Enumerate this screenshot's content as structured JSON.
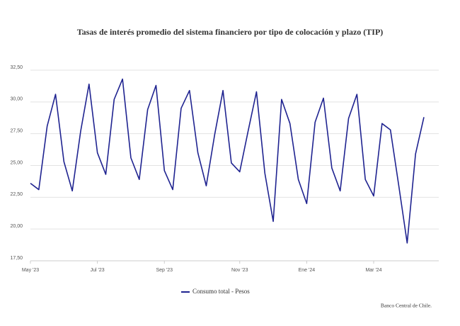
{
  "chart_data": {
    "type": "line",
    "title": "Tasas de interés promedio del sistema financiero por tipo de colocación y plazo (TIP)",
    "credit": "Banco Central de Chile.",
    "categories": [
      "May '23",
      null,
      null,
      null,
      null,
      null,
      null,
      null,
      "Jul '23",
      null,
      null,
      null,
      null,
      null,
      null,
      null,
      "Sep '23",
      null,
      null,
      null,
      null,
      null,
      null,
      null,
      null,
      "Nov '23",
      null,
      null,
      null,
      null,
      null,
      null,
      null,
      "Ene '24",
      null,
      null,
      null,
      null,
      null,
      null,
      null,
      "Mar '24",
      null,
      null,
      null,
      null,
      null,
      null
    ],
    "series": [
      {
        "name": "Consumo total - Pesos",
        "color": "#1f2390",
        "values": [
          23.6,
          23.1,
          28.1,
          30.6,
          25.3,
          23.0,
          27.7,
          31.4,
          26.0,
          24.3,
          30.2,
          31.8,
          25.6,
          23.9,
          29.4,
          31.3,
          24.6,
          23.1,
          29.5,
          30.9,
          26.0,
          23.4,
          27.4,
          30.9,
          25.2,
          24.5,
          27.7,
          30.8,
          24.4,
          20.6,
          30.2,
          28.3,
          23.9,
          22.0,
          28.4,
          30.3,
          24.8,
          23.0,
          28.7,
          30.6,
          23.9,
          22.6,
          28.3,
          27.8,
          23.4,
          18.9,
          25.9,
          28.8
        ]
      }
    ],
    "ylim": [
      17.5,
      32.5
    ],
    "yticks": [
      {
        "value": 17.5,
        "label": "17,50"
      },
      {
        "value": 20,
        "label": "20,00"
      },
      {
        "value": 22.5,
        "label": "22,50"
      },
      {
        "value": 25,
        "label": "25,00"
      },
      {
        "value": 27.5,
        "label": "27,50"
      },
      {
        "value": 30,
        "label": "30,00"
      },
      {
        "value": 32.5,
        "label": "32,50"
      }
    ],
    "grid": true
  }
}
